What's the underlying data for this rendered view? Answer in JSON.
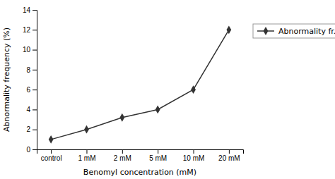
{
  "chart_data": {
    "type": "line",
    "xlabel": "Benomyl concentration (mM)",
    "ylabel": "Abnormality frequency (%)",
    "categories": [
      "control",
      "1 mM",
      "2 mM",
      "5 mM",
      "10 mM",
      "20 mM"
    ],
    "series": [
      {
        "name": "Abnormality fr.",
        "color": "#333333",
        "marker": "diamond",
        "line_style": "solid",
        "values": [
          1.0,
          2.0,
          3.2,
          4.0,
          6.0,
          12.0
        ]
      }
    ],
    "ylim": [
      0,
      14
    ],
    "yticks": [
      0,
      2,
      4,
      6,
      8,
      10,
      12,
      14
    ],
    "grid": false,
    "legend": "right"
  }
}
